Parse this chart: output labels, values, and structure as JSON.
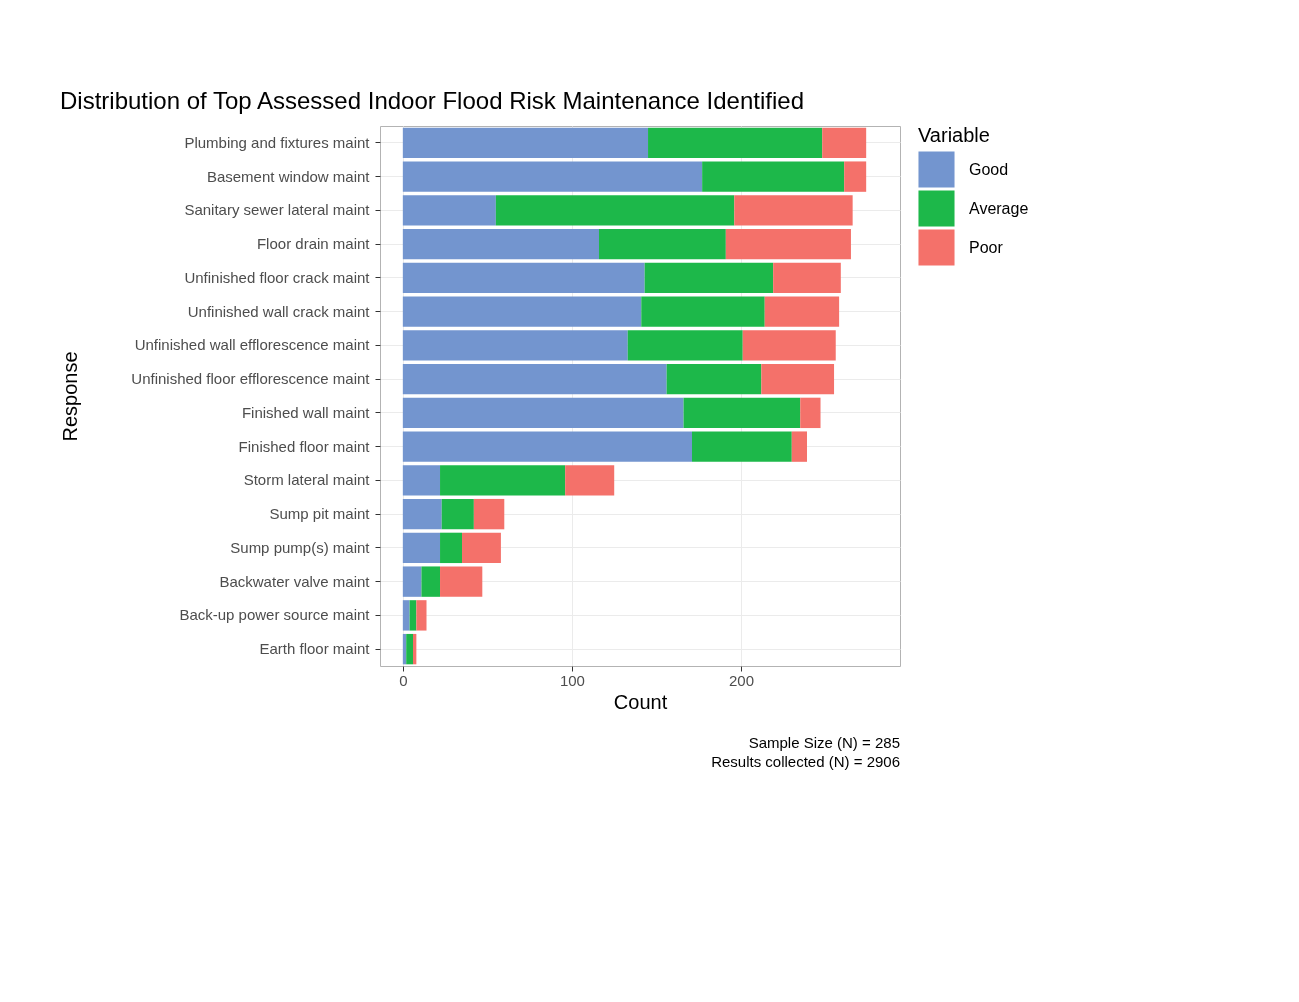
{
  "chart_data": {
    "type": "bar",
    "orientation": "horizontal",
    "stacked": true,
    "title": "Distribution of Top Assessed Indoor Flood Risk Maintenance Identified",
    "xlabel": "Count",
    "ylabel": "Response",
    "legend_title": "Variable",
    "legend": "right",
    "grid": true,
    "categories": [
      "Plumbing and fixtures maint",
      "Basement window maint",
      "Sanitary sewer lateral maint",
      "Floor drain maint",
      "Unfinished floor crack maint",
      "Unfinished wall crack maint",
      "Unfinished wall efflorescence maint",
      "Unfinished floor efflorescence maint",
      "Finished wall maint",
      "Finished floor maint",
      "Storm lateral maint",
      "Sump pit maint",
      "Sump pump(s) maint",
      "Backwater valve maint",
      "Back-up power source maint",
      "Earth floor maint"
    ],
    "series": [
      {
        "name": "Good",
        "color": "#7395cf",
        "values": [
          145,
          177,
          55,
          116,
          143,
          141,
          133,
          156,
          166,
          171,
          22,
          23,
          22,
          11,
          4,
          2
        ]
      },
      {
        "name": "Average",
        "color": "#1db84a",
        "values": [
          103,
          84,
          141,
          75,
          76,
          73,
          68,
          56,
          69,
          59,
          74,
          19,
          13,
          11,
          4,
          4
        ]
      },
      {
        "name": "Poor",
        "color": "#f4716a",
        "values": [
          26,
          13,
          70,
          74,
          40,
          44,
          55,
          43,
          12,
          9,
          29,
          18,
          23,
          25,
          6,
          2
        ]
      }
    ],
    "xlim": [
      -13.5,
      294
    ],
    "xticks": [
      0,
      100,
      200
    ],
    "annotations": [
      "Sample Size (N) = 285",
      "Results collected (N) = 2906"
    ]
  }
}
